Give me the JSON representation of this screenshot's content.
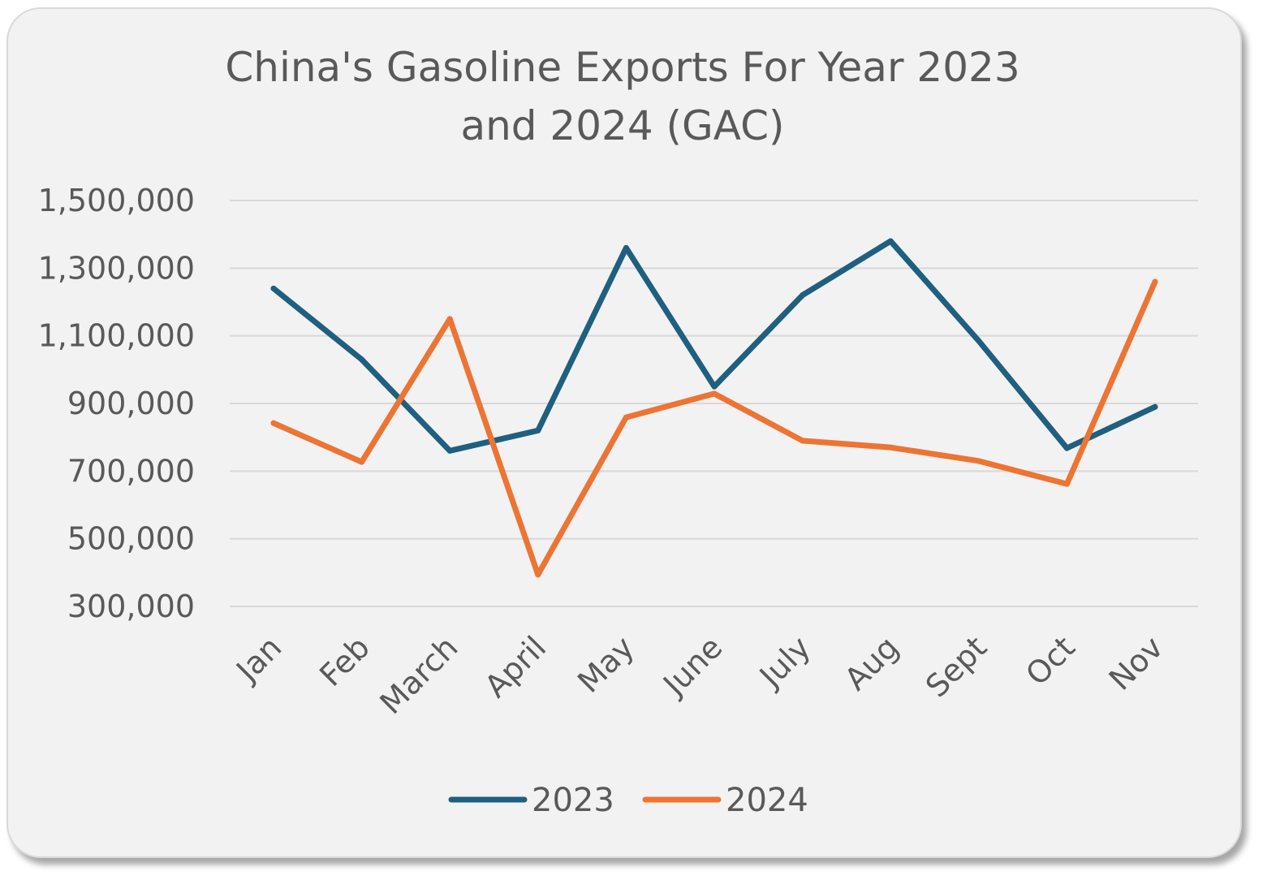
{
  "chart_data": {
    "type": "line",
    "title": [
      "China's Gasoline Exports For Year 2023",
      "and 2024 (GAC)"
    ],
    "xlabel": "",
    "ylabel": "",
    "categories": [
      "Jan",
      "Feb",
      "March",
      "April",
      "May",
      "June",
      "July",
      "Aug",
      "Sept",
      "Oct",
      "Nov"
    ],
    "ylim": [
      300000,
      1500000
    ],
    "yticks": [
      300000,
      500000,
      700000,
      900000,
      1100000,
      1300000,
      1500000
    ],
    "ytick_labels": [
      "300,000",
      "500,000",
      "700,000",
      "900,000",
      "1,100,000",
      "1,300,000",
      "1,500,000"
    ],
    "grid": true,
    "legend_position": "bottom",
    "series": [
      {
        "name": "2023",
        "color": "#1f5f7f",
        "values": [
          1240000,
          1030000,
          760000,
          820000,
          1360000,
          950000,
          1220000,
          1380000,
          1085000,
          768000,
          890000
        ]
      },
      {
        "name": "2024",
        "color": "#ed7433",
        "values": [
          842000,
          727000,
          1150000,
          394000,
          859000,
          929000,
          790000,
          770000,
          730000,
          662000,
          1260000
        ]
      }
    ]
  }
}
